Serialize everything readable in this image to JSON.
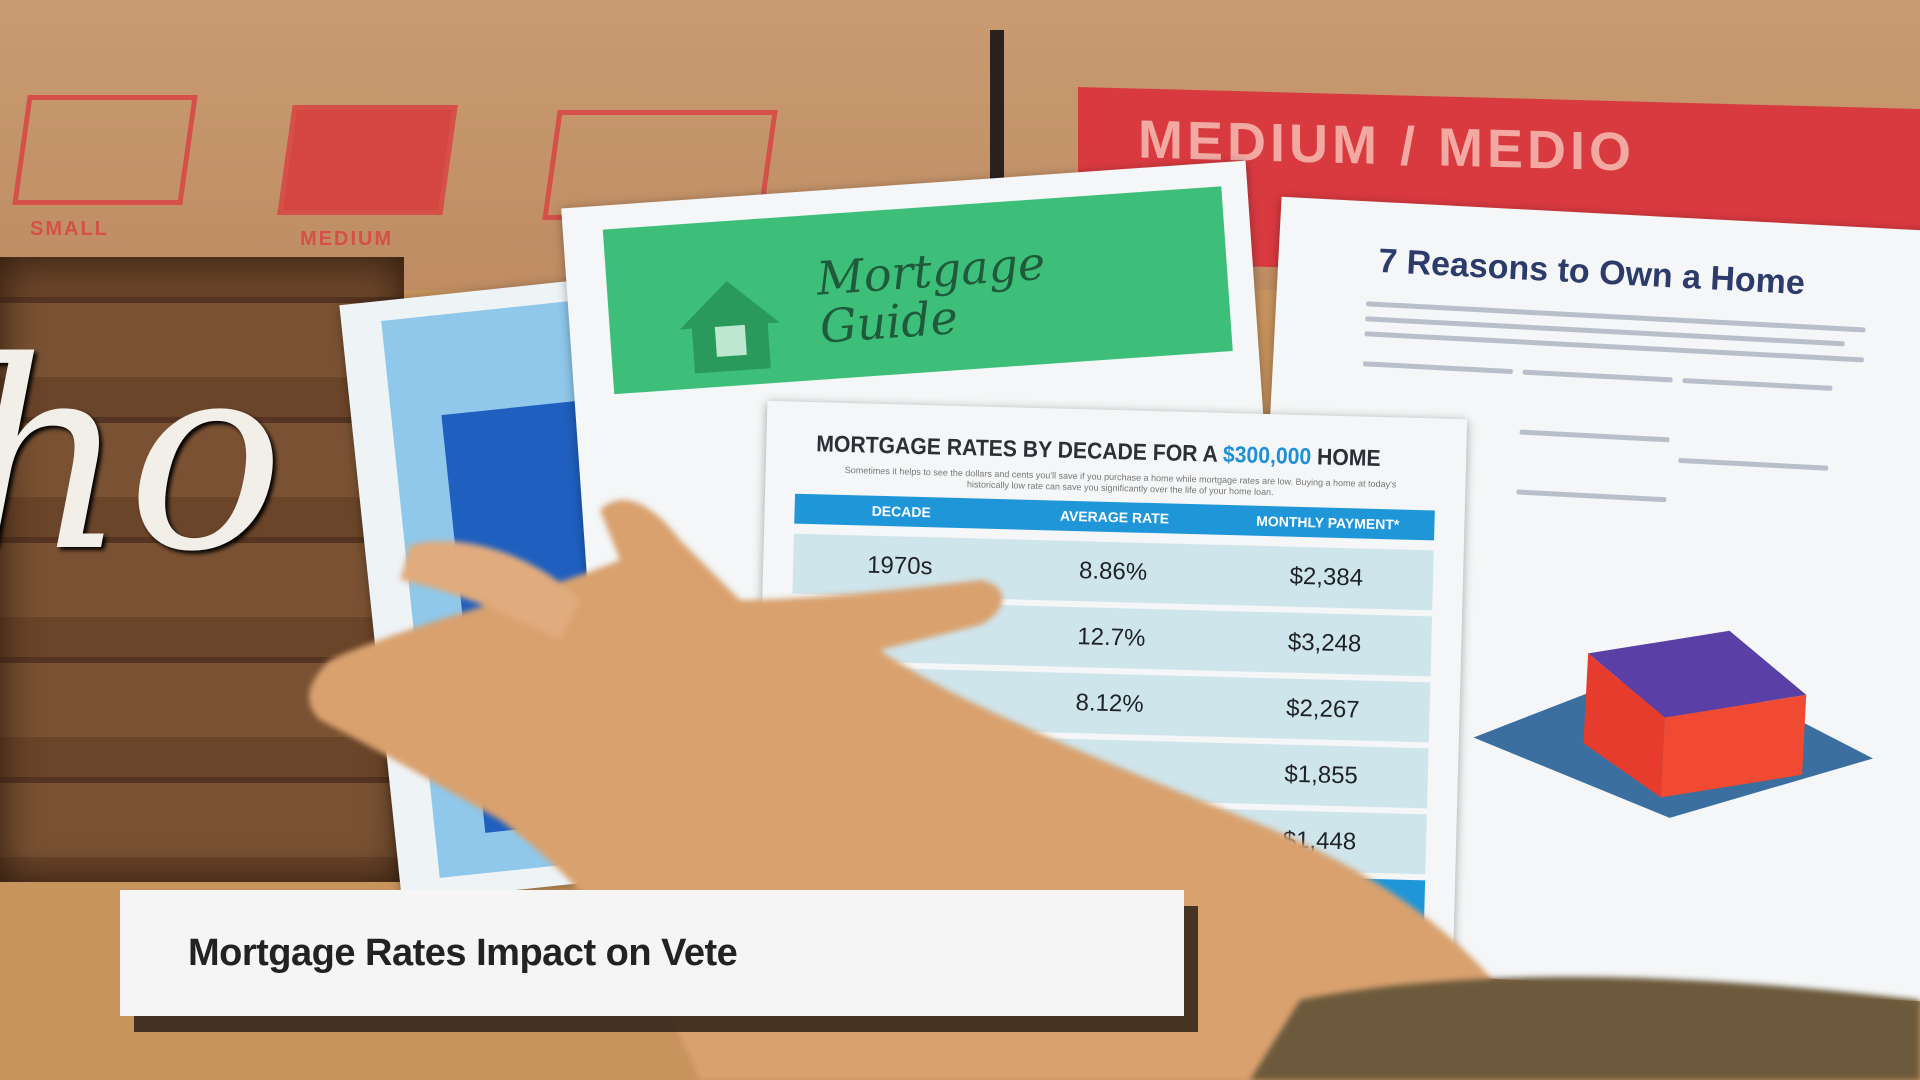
{
  "background": {
    "box_labels": [
      "SMALL",
      "MEDIUM"
    ],
    "box_panel_text": "MEDIUM / MEDIO",
    "sign_text": "ho",
    "guide_title": "Mortgage Guide",
    "reasons_title": "7 Reasons to Own a Home"
  },
  "rates_sheet": {
    "title_prefix": "MORTGAGE RATES BY DECADE FOR A",
    "title_amount": "$300,000",
    "title_suffix": "HOME",
    "subtitle": "Sometimes it helps to see the dollars and cents you'll save if you purchase a home while mortgage rates are low. Buying a home at today's historically low rate can save you significantly over the life of your home loan.",
    "columns": [
      "DECADE",
      "AVERAGE RATE",
      "MONTHLY PAYMENT*"
    ],
    "rows": [
      {
        "decade": "1970s",
        "rate": "8.86%",
        "payment": "$2,384"
      },
      {
        "decade": "",
        "rate": "12.7%",
        "payment": "$3,248"
      },
      {
        "decade": "",
        "rate": "8.12%",
        "payment": "$2,267"
      },
      {
        "decade": "",
        "rate": "",
        "payment": "$1,855"
      },
      {
        "decade": "",
        "rate": "",
        "payment": "$1,448"
      }
    ]
  },
  "caption": {
    "text": "Mortgage Rates Impact on Vete"
  },
  "colors": {
    "caption_bg": "#f5f5f5",
    "table_header": "#1e96d8",
    "box_red": "#d93a40",
    "guide_green": "#3dbf7a"
  }
}
